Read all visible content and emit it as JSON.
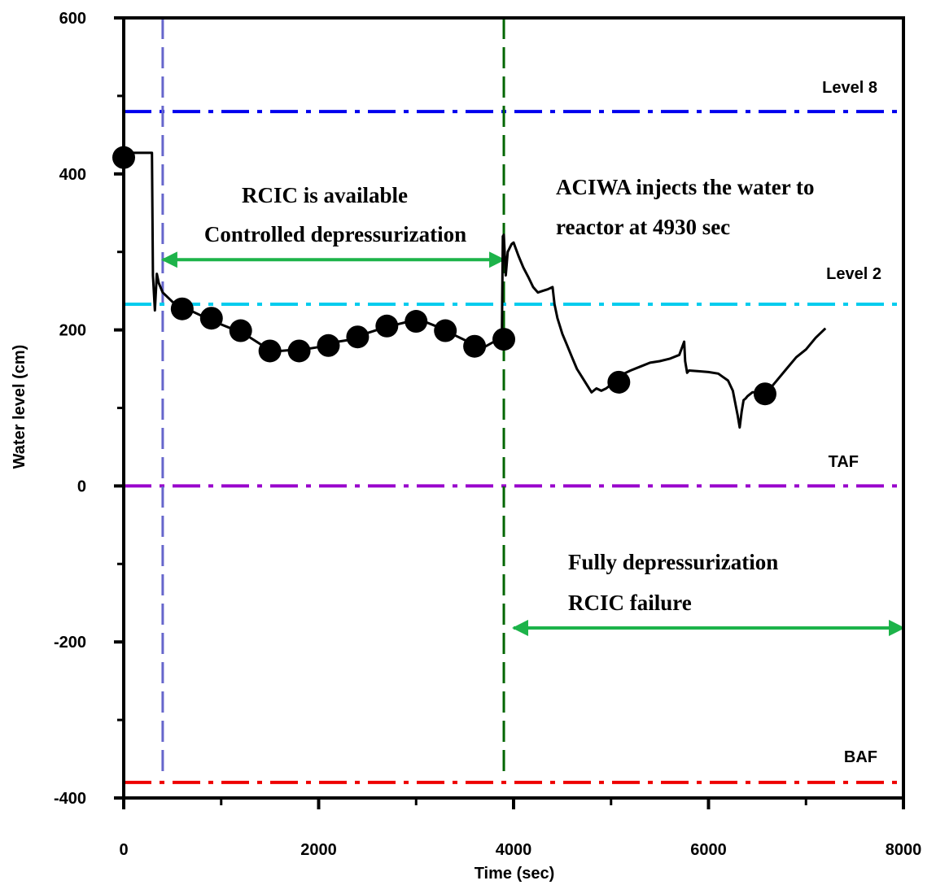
{
  "chart_data": {
    "type": "line",
    "xlabel": "Time (sec)",
    "ylabel": "Water level (cm)",
    "xlim": [
      0,
      8000
    ],
    "ylim": [
      -400,
      600
    ],
    "xticks": [
      0,
      2000,
      4000,
      6000,
      8000
    ],
    "yticks": [
      -400,
      -200,
      0,
      200,
      400,
      600
    ],
    "x_minor_ticks": [
      1000,
      3000,
      5000,
      7000
    ],
    "y_minor_ticks": [
      -300,
      -100,
      100,
      300,
      500
    ],
    "grid": false,
    "reference_lines": [
      {
        "label": "Level 8",
        "y": 480,
        "color": "#0000ee",
        "style": "dash-dot"
      },
      {
        "label": "Level 2",
        "y": 233,
        "color": "#00ccee",
        "style": "dash-dot"
      },
      {
        "label": "TAF",
        "y": 0,
        "color": "#9900cc",
        "style": "dash-dot"
      },
      {
        "label": "BAF",
        "y": -380,
        "color": "#ee0000",
        "style": "dash-dot"
      }
    ],
    "vertical_lines": [
      {
        "x": 400,
        "color": "#6666cc",
        "style": "dashed"
      },
      {
        "x": 3900,
        "color": "#006600",
        "style": "dashed"
      }
    ],
    "series": [
      {
        "color": "#000000",
        "marker": "circle",
        "x": [
          0,
          100,
          200,
          290,
          300,
          320,
          340,
          360,
          400,
          500,
          600,
          700,
          800,
          900,
          1000,
          1100,
          1200,
          1300,
          1400,
          1500,
          1600,
          1700,
          1800,
          1900,
          2000,
          2100,
          2200,
          2300,
          2400,
          2500,
          2600,
          2700,
          2800,
          2900,
          3000,
          3100,
          3200,
          3300,
          3400,
          3500,
          3600,
          3700,
          3800,
          3880,
          3890,
          3900,
          3920,
          3940,
          3980,
          4000,
          4050,
          4100,
          4150,
          4200,
          4250,
          4300,
          4350,
          4400,
          4420,
          4450,
          4500,
          4550,
          4600,
          4650,
          4700,
          4750,
          4800,
          4850,
          4900,
          4950,
          5000,
          5050,
          5100,
          5200,
          5300,
          5400,
          5500,
          5600,
          5700,
          5750,
          5760,
          5780,
          5800,
          5900,
          6000,
          6100,
          6200,
          6250,
          6300,
          6320,
          6340,
          6360,
          6380,
          6400,
          6450,
          6500,
          6550,
          6600,
          6700,
          6800,
          6900,
          7000,
          7100,
          7200
        ],
        "y": [
          421,
          427,
          427,
          427,
          270,
          225,
          272,
          260,
          248,
          236,
          228,
          224,
          218,
          212,
          207,
          202,
          197,
          190,
          182,
          175,
          173,
          174,
          175,
          176,
          178,
          182,
          185,
          187,
          190,
          196,
          200,
          204,
          207,
          210,
          212,
          210,
          205,
          199,
          193,
          187,
          181,
          178,
          185,
          190,
          320,
          322,
          270,
          300,
          310,
          312,
          295,
          280,
          268,
          255,
          248,
          250,
          252,
          255,
          233,
          215,
          195,
          180,
          165,
          150,
          140,
          130,
          120,
          125,
          122,
          125,
          130,
          138,
          142,
          148,
          153,
          158,
          160,
          163,
          168,
          185,
          160,
          145,
          148,
          147,
          146,
          144,
          135,
          122,
          90,
          75,
          95,
          110,
          112,
          115,
          120,
          120,
          118,
          120,
          135,
          150,
          165,
          175,
          190,
          202
        ],
        "marker_x": [
          0,
          600,
          900,
          1200,
          1500,
          1800,
          2100,
          2400,
          2700,
          3000,
          3300,
          3600,
          3900,
          5080,
          6580
        ],
        "marker_y": [
          421,
          227,
          215,
          199,
          173,
          173,
          180,
          191,
          205,
          211,
          199,
          179,
          188,
          133,
          118
        ]
      }
    ],
    "annotations": [
      {
        "lines": [
          "RCIC is available",
          "Controlled depressurization"
        ],
        "arrow_x": [
          400,
          3900
        ],
        "arrow_y": 290,
        "arrow_color": "#1db34a"
      },
      {
        "lines": [
          "ACIWA injects the water to",
          "reactor at 4930 sec"
        ]
      },
      {
        "lines": [
          "Fully depressurization",
          "RCIC failure"
        ],
        "arrow_x": [
          4000,
          8000
        ],
        "arrow_y": -182,
        "arrow_color": "#1db34a"
      }
    ]
  }
}
